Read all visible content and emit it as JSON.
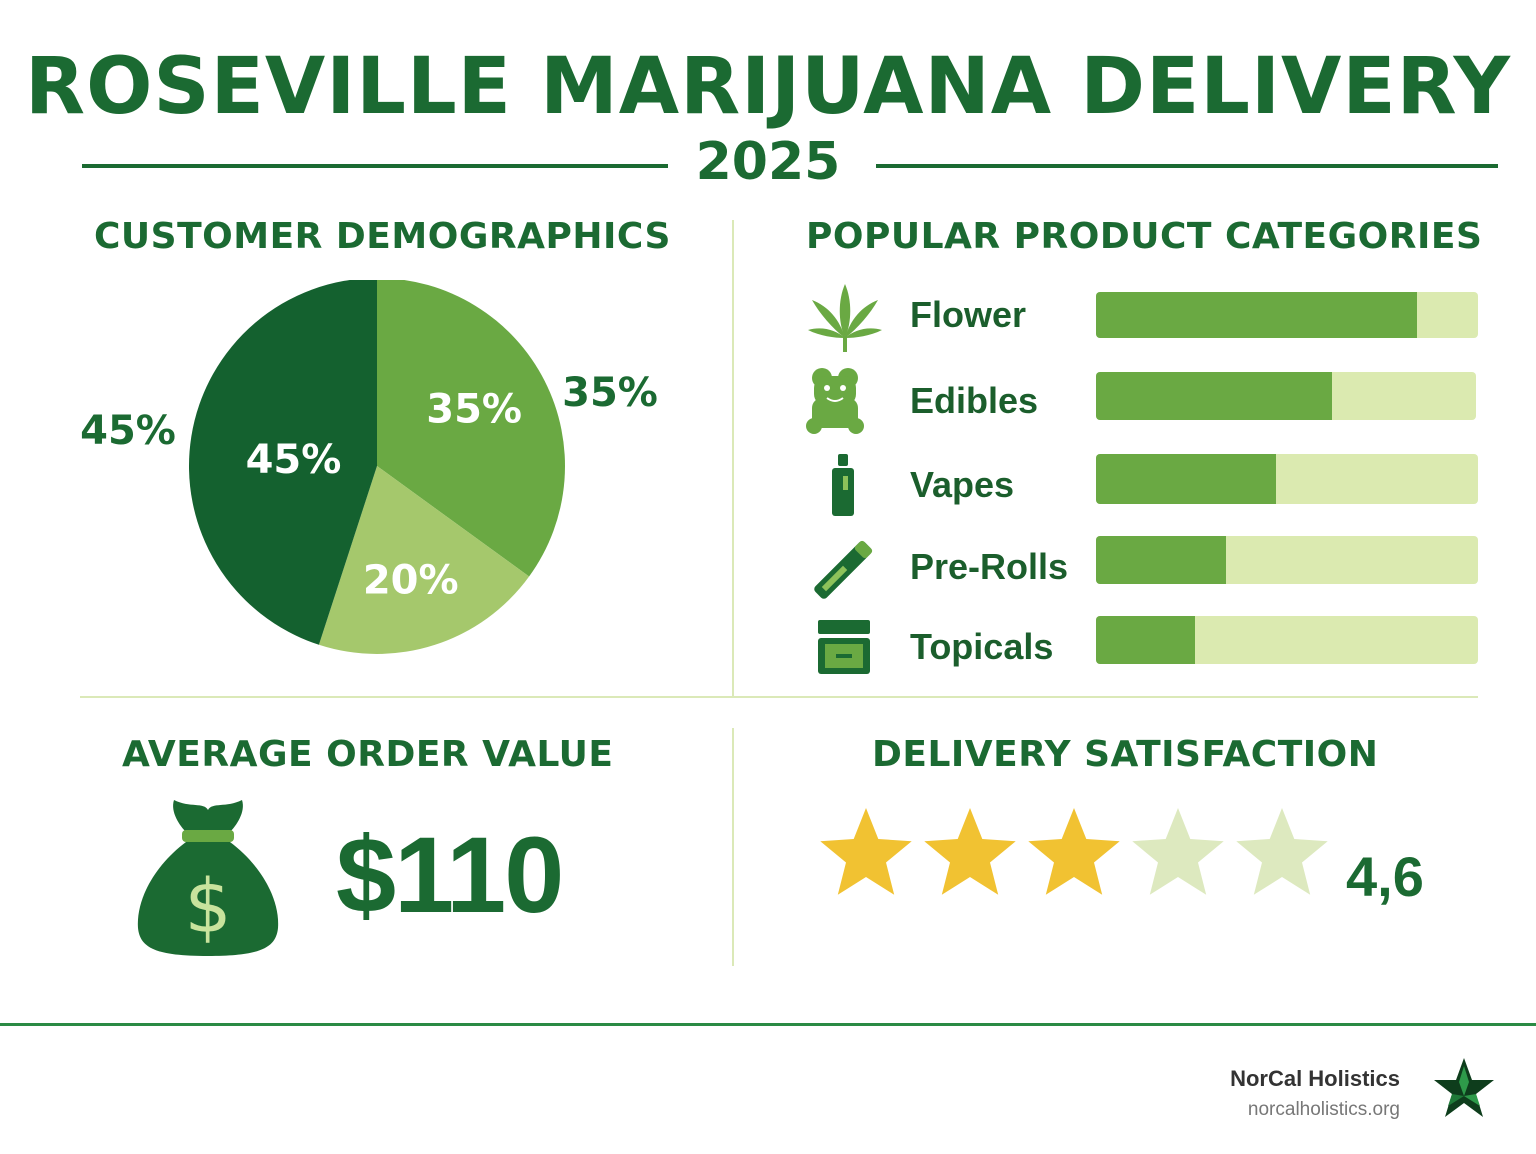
{
  "title": "ROSEVILLE MARIJUANA DELIVERY",
  "year": "2025",
  "sections": {
    "demographics": "CUSTOMER DEMOGRAPHICS",
    "categories": "POPULAR PRODUCT CATEGORIES",
    "order_value": "AVERAGE ORDER VALUE",
    "satisfaction": "DELIVERY SATISFACTION"
  },
  "colors": {
    "dark_green": "#14612f",
    "mid_green": "#6aa943",
    "light_green": "#a5c86c",
    "bar_track": "#dbeab0",
    "star_gold": "#f1c232",
    "star_empty": "#dde9bf"
  },
  "chart_data": [
    {
      "type": "pie",
      "slices": [
        {
          "value": 45,
          "label": "45%",
          "outer_label": "45%",
          "color": "#14612f"
        },
        {
          "value": 35,
          "label": "35%",
          "outer_label": "35%",
          "color": "#6aa943"
        },
        {
          "value": 20,
          "label": "20%",
          "outer_label": "",
          "color": "#a5c86c"
        }
      ]
    },
    {
      "type": "bar",
      "orientation": "horizontal",
      "categories": [
        "Flower",
        "Edibles",
        "Vapes",
        "Pre-Rolls",
        "Topicals"
      ],
      "icons": [
        "cannabis-leaf-icon",
        "gummy-bear-icon",
        "vape-pen-icon",
        "pre-roll-icon",
        "topical-jar-icon"
      ],
      "values": [
        84,
        62,
        47,
        34,
        26
      ],
      "xlim": [
        0,
        100
      ]
    }
  ],
  "order_value": {
    "amount": "$110",
    "icon": "money-bag-icon"
  },
  "satisfaction": {
    "rating_text": "4,6",
    "stars_total": 5,
    "stars_filled": 3,
    "icon": "star-icon"
  },
  "footer": {
    "brand": "NorCal Holistics",
    "url": "norcalholistics.org",
    "logo_icon": "star-logo-icon"
  }
}
